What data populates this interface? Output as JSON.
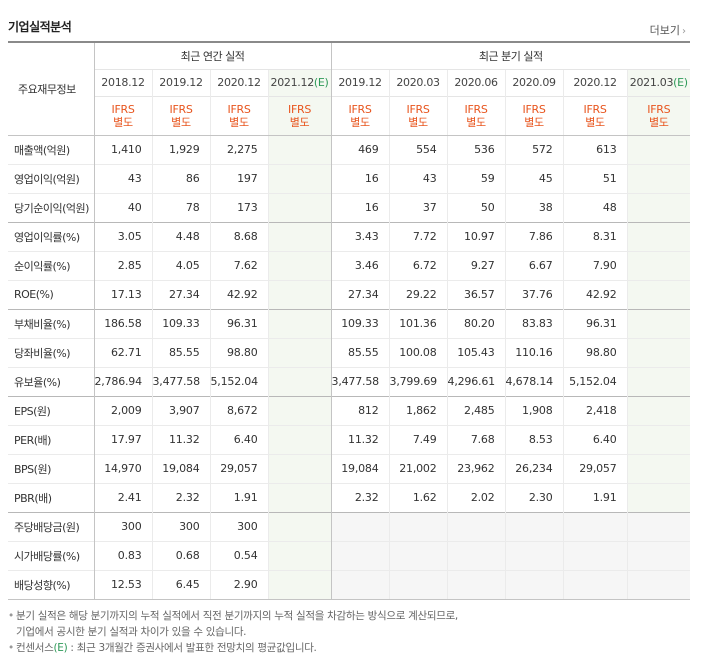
{
  "header": {
    "title": "기업실적분석",
    "more_label": "더보기"
  },
  "table": {
    "corner_label": "주요재무정보",
    "annual_group_label": "최근 연간 실적",
    "quarter_group_label": "최근 분기 실적",
    "estimate_marker": "(E)",
    "columns": [
      {
        "period": "2018.12",
        "basis": "IFRS\n별도",
        "estimate": false
      },
      {
        "period": "2019.12",
        "basis": "IFRS\n별도",
        "estimate": false
      },
      {
        "period": "2020.12",
        "basis": "IFRS\n별도",
        "estimate": false
      },
      {
        "period": "2021.12",
        "basis": "IFRS\n별도",
        "estimate": true
      },
      {
        "period": "2019.12",
        "basis": "IFRS\n별도",
        "estimate": false
      },
      {
        "period": "2020.03",
        "basis": "IFRS\n별도",
        "estimate": false
      },
      {
        "period": "2020.06",
        "basis": "IFRS\n별도",
        "estimate": false
      },
      {
        "period": "2020.09",
        "basis": "IFRS\n별도",
        "estimate": false
      },
      {
        "period": "2020.12",
        "basis": "IFRS\n별도",
        "estimate": false
      },
      {
        "period": "2021.03",
        "basis": "IFRS\n별도",
        "estimate": true
      }
    ],
    "rows": [
      {
        "label": "매출액(억원)",
        "group_start": false,
        "values": [
          "1,410",
          "1,929",
          "2,275",
          "",
          "469",
          "554",
          "536",
          "572",
          "613",
          ""
        ]
      },
      {
        "label": "영업이익(억원)",
        "group_start": false,
        "values": [
          "43",
          "86",
          "197",
          "",
          "16",
          "43",
          "59",
          "45",
          "51",
          ""
        ]
      },
      {
        "label": "당기순이익(억원)",
        "group_start": false,
        "values": [
          "40",
          "78",
          "173",
          "",
          "16",
          "37",
          "50",
          "38",
          "48",
          ""
        ]
      },
      {
        "label": "영업이익률(%)",
        "group_start": true,
        "values": [
          "3.05",
          "4.48",
          "8.68",
          "",
          "3.43",
          "7.72",
          "10.97",
          "7.86",
          "8.31",
          ""
        ]
      },
      {
        "label": "순이익률(%)",
        "group_start": false,
        "values": [
          "2.85",
          "4.05",
          "7.62",
          "",
          "3.46",
          "6.72",
          "9.27",
          "6.67",
          "7.90",
          ""
        ]
      },
      {
        "label": "ROE(%)",
        "group_start": false,
        "values": [
          "17.13",
          "27.34",
          "42.92",
          "",
          "27.34",
          "29.22",
          "36.57",
          "37.76",
          "42.92",
          ""
        ]
      },
      {
        "label": "부채비율(%)",
        "group_start": true,
        "values": [
          "186.58",
          "109.33",
          "96.31",
          "",
          "109.33",
          "101.36",
          "80.20",
          "83.83",
          "96.31",
          ""
        ]
      },
      {
        "label": "당좌비율(%)",
        "group_start": false,
        "values": [
          "62.71",
          "85.55",
          "98.80",
          "",
          "85.55",
          "100.08",
          "105.43",
          "110.16",
          "98.80",
          ""
        ]
      },
      {
        "label": "유보율(%)",
        "group_start": false,
        "values": [
          "2,786.94",
          "3,477.58",
          "5,152.04",
          "",
          "3,477.58",
          "3,799.69",
          "4,296.61",
          "4,678.14",
          "5,152.04",
          ""
        ]
      },
      {
        "label": "EPS(원)",
        "group_start": true,
        "values": [
          "2,009",
          "3,907",
          "8,672",
          "",
          "812",
          "1,862",
          "2,485",
          "1,908",
          "2,418",
          ""
        ]
      },
      {
        "label": "PER(배)",
        "group_start": false,
        "values": [
          "17.97",
          "11.32",
          "6.40",
          "",
          "11.32",
          "7.49",
          "7.68",
          "8.53",
          "6.40",
          ""
        ]
      },
      {
        "label": "BPS(원)",
        "group_start": false,
        "values": [
          "14,970",
          "19,084",
          "29,057",
          "",
          "19,084",
          "21,002",
          "23,962",
          "26,234",
          "29,057",
          ""
        ]
      },
      {
        "label": "PBR(배)",
        "group_start": false,
        "values": [
          "2.41",
          "2.32",
          "1.91",
          "",
          "2.32",
          "1.62",
          "2.02",
          "2.30",
          "1.91",
          ""
        ]
      },
      {
        "label": "주당배당금(원)",
        "group_start": true,
        "values": [
          "300",
          "300",
          "300",
          "",
          "",
          "",
          "",
          "",
          "",
          ""
        ]
      },
      {
        "label": "시가배당률(%)",
        "group_start": false,
        "values": [
          "0.83",
          "0.68",
          "0.54",
          "",
          "",
          "",
          "",
          "",
          "",
          ""
        ]
      },
      {
        "label": "배당성향(%)",
        "group_start": false,
        "values": [
          "12.53",
          "6.45",
          "2.90",
          "",
          "",
          "",
          "",
          "",
          "",
          ""
        ]
      }
    ]
  },
  "notes": {
    "note1_line1": "분기 실적은 해당 분기까지의 누적 실적에서 직전 분기까지의 누적 실적을 차감하는 방식으로 계산되므로,",
    "note1_line2": "기업에서 공시한 분기 실적과 차이가 있을 수 있습니다.",
    "note2_prefix": "컨센서스",
    "note2_marker": "(E)",
    "note2_text": " : 최근 3개월간 증권사에서 발표한 전망치의 평균값입니다.",
    "bullet": "•"
  }
}
